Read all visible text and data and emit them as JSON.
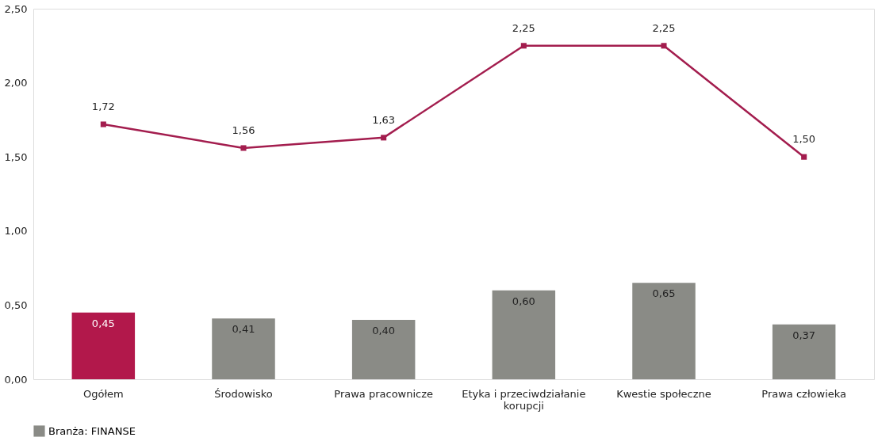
{
  "chart_data": {
    "type": "bar",
    "categories": [
      "Ogółem",
      "Środowisko",
      "Prawa pracownicze",
      "Etyka i przeciwdziałanie korupcji",
      "Kwestie społeczne",
      "Prawa człowieka"
    ],
    "series": [
      {
        "name": "Branża: FINANSE",
        "color": "#8a8b86",
        "colors": [
          "#b2184b",
          "#8a8b86",
          "#8a8b86",
          "#8a8b86",
          "#8a8b86",
          "#8a8b86"
        ],
        "values": [
          0.45,
          0.41,
          0.4,
          0.6,
          0.65,
          0.37
        ],
        "value_labels": [
          "0,45",
          "0,41",
          "0,40",
          "0,60",
          "0,65",
          "0,37"
        ]
      },
      {
        "type": "line",
        "color": "#a31d4e",
        "values": [
          1.72,
          1.56,
          1.63,
          2.25,
          2.25,
          1.5
        ],
        "value_labels": [
          "1,72",
          "1,56",
          "1,63",
          "2,25",
          "2,25",
          "1,50"
        ]
      }
    ],
    "ylim": [
      0,
      2.5
    ],
    "yticks": [
      {
        "value": 0,
        "label": "0,00"
      },
      {
        "value": 0.5,
        "label": "0,50"
      },
      {
        "value": 1,
        "label": "1,00"
      },
      {
        "value": 1.5,
        "label": "1,50"
      },
      {
        "value": 2,
        "label": "2,00"
      },
      {
        "value": 2.5,
        "label": "2,50"
      }
    ],
    "grid": false,
    "legend": "bottom",
    "marker": "square",
    "line_style": "solid"
  }
}
